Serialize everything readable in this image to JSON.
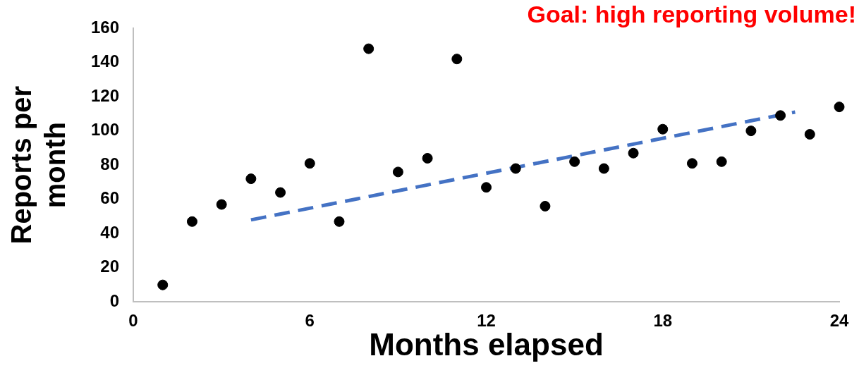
{
  "chart_data": {
    "type": "scatter",
    "xlabel": "Months elapsed",
    "ylabel": "Reports per month",
    "annotations": [
      "Goal: high reporting volume!"
    ],
    "xlim": [
      0,
      24
    ],
    "xticks": [
      0,
      6,
      12,
      18,
      24
    ],
    "ylim": [
      0,
      160
    ],
    "yticks": [
      0,
      20,
      40,
      60,
      80,
      100,
      120,
      140,
      160
    ],
    "grid": false,
    "legend": false,
    "marker": "circle",
    "series": [
      {
        "type": "scatter",
        "color": "#000000",
        "x": [
          1,
          2,
          3,
          4,
          5,
          6,
          7,
          8,
          9,
          10,
          11,
          12,
          13,
          14,
          15,
          16,
          17,
          18,
          19,
          20,
          21,
          22,
          23,
          24
        ],
        "values": [
          10,
          47,
          57,
          72,
          64,
          81,
          47,
          148,
          76,
          84,
          142,
          67,
          78,
          56,
          82,
          78,
          87,
          101,
          81,
          82,
          100,
          109,
          98,
          114
        ]
      },
      {
        "type": "line",
        "color": "#4472c4",
        "line_style": "dashed",
        "marker": "none",
        "x": [
          4,
          22.5
        ],
        "values": [
          48,
          111
        ]
      }
    ]
  }
}
